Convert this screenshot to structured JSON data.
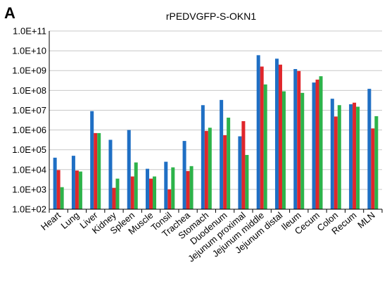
{
  "panel_label": "A",
  "chart_data": {
    "type": "bar",
    "title": "rPEDVGFP-S-OKN1",
    "xlabel": "",
    "ylabel": "",
    "y_scale": "log",
    "ylim": [
      100,
      100000000000
    ],
    "y_tick_labels": [
      "1.0E+02",
      "1.0E+03",
      "1.0E+04",
      "1.0E+05",
      "1.0E+06",
      "1.0E+07",
      "1.0E+08",
      "1.0E+09",
      "1.0E+10",
      "1.0E+11"
    ],
    "grid": "horizontal",
    "categories": [
      "Heart",
      "Lung",
      "Liver",
      "Kidney",
      "Spleen",
      "Muscle",
      "Tonsil",
      "Trachea",
      "Stomach",
      "Duodenum",
      "Jejunum proximal",
      "Jejunum middle",
      "Jejunum distal",
      "Ileum",
      "Cecum",
      "Colon",
      "Recum",
      "MLN"
    ],
    "series": [
      {
        "color": "#1f6fc4",
        "values": [
          40000,
          50000,
          9000000,
          320000,
          1000000,
          11000,
          25000,
          280000,
          18000000,
          33000000,
          480000,
          6000000000,
          4000000000,
          1200000000,
          250000000,
          38000000,
          20000000,
          120000000
        ]
      },
      {
        "color": "#e0262b",
        "values": [
          9500,
          9000,
          700000,
          1200,
          4500,
          3500,
          1000,
          8500,
          900000,
          550000,
          2800000,
          1600000000,
          2000000000,
          950000000,
          350000000,
          4800000,
          24000000,
          1200000
        ]
      },
      {
        "color": "#2db34a",
        "values": [
          1300,
          8000,
          700000,
          3500,
          23000,
          4500,
          13000,
          15000,
          1300000,
          4200000,
          55000,
          200000000,
          90000000,
          75000000,
          520000000,
          18000000,
          15000000,
          5000000
        ]
      }
    ]
  }
}
